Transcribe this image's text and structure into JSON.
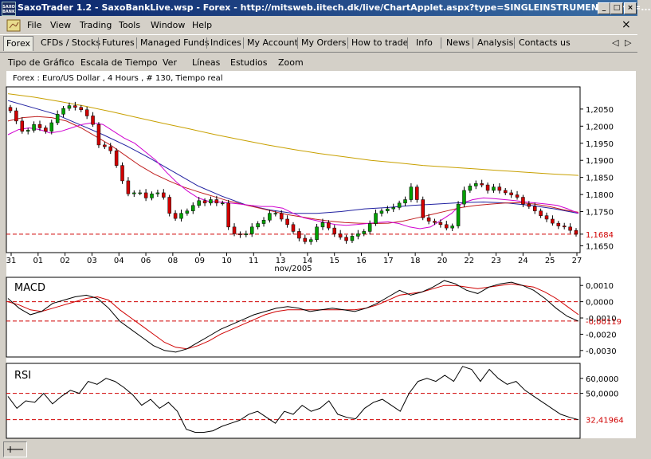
{
  "window": {
    "title": "SaxoTrader 1.2 - SaxoBankLive.wsp - Forex - http://mitsweb.iitech.dk/live/ChartApplet.aspx?type=SINGLEINSTRUMENT&lang=...",
    "icon": "SAXO BANK"
  },
  "window_buttons": {
    "minimize": "_",
    "maximize": "□",
    "close": "×"
  },
  "menu": [
    "File",
    "View",
    "Trading",
    "Tools",
    "Window",
    "Help"
  ],
  "menu_close": "×",
  "sitenav": {
    "items": [
      "Forex",
      "CFDs / Stocks",
      "Futures",
      "Managed Funds",
      "Indices",
      "My Account",
      "My Orders",
      "How to trade",
      "Info",
      "News",
      "Analysis",
      "Contacts us"
    ],
    "active": 0,
    "arrows": [
      "◁",
      "▷"
    ]
  },
  "chart_menu": [
    "Tipo de Gráfico",
    "Escala de Tiempo",
    "Ver",
    "Líneas",
    "Estudios",
    "Zoom"
  ],
  "chart_data": [
    {
      "type": "candlestick",
      "title": "Forex : Euro/US Dollar , 4 Hours , # 130, Tiempo real",
      "xlabel": "nov/2005",
      "x_ticks": [
        "31",
        "01",
        "02",
        "03",
        "04",
        "06",
        "08",
        "09",
        "10",
        "11",
        "13",
        "14",
        "15",
        "16",
        "17",
        "18",
        "20",
        "22",
        "23",
        "24",
        "25",
        "27"
      ],
      "y_ticks": [
        "1,2050",
        "1,2000",
        "1,1950",
        "1,1900",
        "1,1850",
        "1,1800",
        "1,1750",
        "1,1684",
        "1,1650"
      ],
      "ylim": [
        1.163,
        1.2115
      ],
      "last_value": "1,1684",
      "close": [
        1.2045,
        1.2015,
        1.1985,
        1.1988,
        1.2005,
        1.1995,
        1.1985,
        1.201,
        1.2035,
        1.2052,
        1.206,
        1.2055,
        1.2048,
        1.203,
        1.2005,
        1.1945,
        1.194,
        1.1928,
        1.1885,
        1.184,
        1.1802,
        1.1805,
        1.1805,
        1.179,
        1.1802,
        1.1805,
        1.1792,
        1.1745,
        1.173,
        1.1745,
        1.1752,
        1.1768,
        1.1782,
        1.1775,
        1.1785,
        1.1775,
        1.1775,
        1.1705,
        1.1685,
        1.1682,
        1.1685,
        1.1705,
        1.1715,
        1.1725,
        1.1745,
        1.1745,
        1.1728,
        1.1712,
        1.1692,
        1.1672,
        1.1662,
        1.1668,
        1.1705,
        1.1718,
        1.1702,
        1.1685,
        1.1675,
        1.1665,
        1.1678,
        1.1685,
        1.1692,
        1.1715,
        1.1745,
        1.1752,
        1.1758,
        1.1762,
        1.1775,
        1.1785,
        1.1822,
        1.1785,
        1.1732,
        1.1722,
        1.1718,
        1.1712,
        1.1702,
        1.1708,
        1.1772,
        1.1812,
        1.1825,
        1.1832,
        1.1828,
        1.1812,
        1.1822,
        1.1812,
        1.1805,
        1.1799,
        1.1792,
        1.1772,
        1.1765,
        1.1752,
        1.1738,
        1.1728,
        1.1716,
        1.1708,
        1.1705,
        1.1695,
        1.1684
      ],
      "sma_fast": [
        1.1975,
        1.199,
        1.1995,
        1.199,
        1.198,
        1.1985,
        1.1995,
        1.2005,
        1.201,
        1.2005,
        1.1985,
        1.1965,
        1.195,
        1.1925,
        1.19,
        1.1865,
        1.1835,
        1.181,
        1.179,
        1.178,
        1.1778,
        1.1775,
        1.1772,
        1.1768,
        1.1765,
        1.1765,
        1.176,
        1.1745,
        1.1732,
        1.1725,
        1.1718,
        1.1712,
        1.171,
        1.1712,
        1.1715,
        1.1718,
        1.172,
        1.1715,
        1.1705,
        1.17,
        1.1705,
        1.1725,
        1.1745,
        1.1775,
        1.1785,
        1.179,
        1.1788,
        1.1785,
        1.1782,
        1.1778,
        1.1775,
        1.1772,
        1.1768,
        1.1758,
        1.1745
      ],
      "sma_mid": [
        1.2015,
        1.2025,
        1.2028,
        1.2025,
        1.2015,
        1.1995,
        1.197,
        1.1945,
        1.1915,
        1.1885,
        1.186,
        1.184,
        1.1822,
        1.1808,
        1.1795,
        1.1782,
        1.1772,
        1.1762,
        1.1752,
        1.1742,
        1.1735,
        1.1728,
        1.1722,
        1.1718,
        1.1716,
        1.1715,
        1.1716,
        1.1722,
        1.1732,
        1.1742,
        1.1752,
        1.1762,
        1.1768,
        1.1772,
        1.1775,
        1.1776,
        1.1772,
        1.1765,
        1.1755,
        1.1748
      ],
      "sma_slow": [
        1.2075,
        1.2055,
        1.2035,
        1.2005,
        1.1975,
        1.1942,
        1.1905,
        1.1865,
        1.1825,
        1.1795,
        1.177,
        1.1755,
        1.1745,
        1.1745,
        1.175,
        1.1758,
        1.1762,
        1.1768,
        1.1772,
        1.1776,
        1.1778,
        1.1775,
        1.1768,
        1.1758,
        1.1745
      ],
      "sma_long": [
        1.2095,
        1.2085,
        1.2072,
        1.2058,
        1.2042,
        1.2025,
        1.2008,
        1.1992,
        1.1975,
        1.196,
        1.1945,
        1.1932,
        1.192,
        1.191,
        1.19,
        1.1893,
        1.1885,
        1.188,
        1.1875,
        1.187,
        1.1865,
        1.186,
        1.1856
      ]
    },
    {
      "type": "line",
      "title": "MACD",
      "y_ticks": [
        "0,0010",
        "0,0000",
        "-0,0010",
        "-0,0020",
        "-0,0030"
      ],
      "ylim": [
        -0.0034,
        0.0015
      ],
      "last_value": "-0,00119",
      "macd": [
        0.0002,
        -0.0004,
        -0.0008,
        -0.0006,
        -0.0001,
        0.0001,
        0.0003,
        0.0004,
        0.0002,
        -0.0004,
        -0.0012,
        -0.0017,
        -0.0022,
        -0.0027,
        -0.003,
        -0.0031,
        -0.0029,
        -0.0025,
        -0.0021,
        -0.0017,
        -0.0014,
        -0.0011,
        -0.0008,
        -0.0006,
        -0.0004,
        -0.0003,
        -0.0004,
        -0.0006,
        -0.0005,
        -0.0004,
        -0.0005,
        -0.0006,
        -0.0004,
        -0.0001,
        0.0003,
        0.0007,
        0.0004,
        0.0006,
        0.0009,
        0.0013,
        0.0011,
        0.0007,
        0.0005,
        0.0009,
        0.0011,
        0.0012,
        0.001,
        0.0007,
        0.0002,
        -0.0004,
        -0.0009,
        -0.0012
      ],
      "signal": [
        0.0,
        -0.0002,
        -0.0005,
        -0.0006,
        -0.0004,
        -0.0002,
        0.0,
        0.0002,
        0.0003,
        0.0001,
        -0.0005,
        -0.001,
        -0.0015,
        -0.002,
        -0.0025,
        -0.0028,
        -0.0029,
        -0.0027,
        -0.0024,
        -0.002,
        -0.0017,
        -0.0014,
        -0.0011,
        -0.0008,
        -0.0006,
        -0.0005,
        -0.0005,
        -0.0005,
        -0.0005,
        -0.0005,
        -0.0005,
        -0.0005,
        -0.0004,
        -0.0002,
        0.0001,
        0.0004,
        0.0005,
        0.0006,
        0.0008,
        0.001,
        0.001,
        0.0009,
        0.0008,
        0.0009,
        0.001,
        0.0011,
        0.001,
        0.0009,
        0.0006,
        0.0002,
        -0.0003,
        -0.0008
      ]
    },
    {
      "type": "line",
      "title": "RSI",
      "y_ticks": [
        "60,0000",
        "50,0000"
      ],
      "ylim": [
        20,
        70
      ],
      "last_value": "32,41964",
      "rsi": [
        48,
        40,
        45,
        44,
        50,
        43,
        48,
        52,
        50,
        58,
        56,
        60,
        58,
        54,
        49,
        42,
        46,
        40,
        44,
        38,
        26,
        24,
        24,
        25,
        28,
        30,
        32,
        36,
        38,
        34,
        30,
        38,
        36,
        42,
        38,
        40,
        45,
        36,
        34,
        33,
        40,
        44,
        46,
        42,
        38,
        50,
        58,
        60,
        58,
        62,
        58,
        68,
        66,
        58,
        66,
        60,
        56,
        58,
        52,
        48,
        44,
        40,
        36,
        34,
        32.4
      ]
    }
  ]
}
